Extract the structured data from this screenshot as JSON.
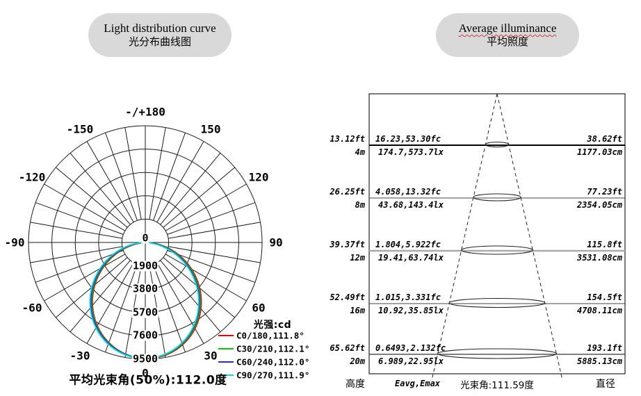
{
  "header": {
    "left_pill": {
      "line1": "Light distribution curve",
      "line2": "光分布曲线图"
    },
    "right_pill": {
      "line1": "Average illuminance",
      "line2": "平均照度"
    }
  },
  "chart_data": [
    {
      "type": "polar",
      "title": "光分布曲线图",
      "units_label": "光强:cd",
      "caption": "平均光束角(50%):112.0度",
      "angle_step_deg": 10,
      "angle_labels": [
        {
          "deg": 0,
          "text": "0"
        },
        {
          "deg": 30,
          "text": "30"
        },
        {
          "deg": 60,
          "text": "60"
        },
        {
          "deg": 90,
          "text": "90"
        },
        {
          "deg": 120,
          "text": "120"
        },
        {
          "deg": 150,
          "text": "150"
        },
        {
          "deg": 180,
          "text": "-/+180"
        },
        {
          "deg": -150,
          "text": "-150"
        },
        {
          "deg": -120,
          "text": "-120"
        },
        {
          "deg": -90,
          "text": "-90"
        },
        {
          "deg": -60,
          "text": "-60"
        },
        {
          "deg": -30,
          "text": "-30"
        }
      ],
      "center_label": "0",
      "ring_values": [
        1900,
        3800,
        5700,
        7600,
        9500
      ],
      "max_cd": 9500,
      "series": [
        {
          "label": "C0/180,111.8°",
          "name": "C0/180",
          "beam_angle_deg": 111.8,
          "color": "#ee0000",
          "peak_cd": 9450
        },
        {
          "label": "C30/210,112.1°",
          "name": "C30/210",
          "beam_angle_deg": 112.1,
          "color": "#00cc00",
          "peak_cd": 9430
        },
        {
          "label": "C60/240,112.0°",
          "name": "C60/240",
          "beam_angle_deg": 112.0,
          "color": "#2a2acc",
          "peak_cd": 9420
        },
        {
          "label": "C90/270,111.9°",
          "name": "C90/270",
          "beam_angle_deg": 111.9,
          "color": "#00dde6",
          "peak_cd": 9440
        }
      ],
      "average_beam_angle_50pct_deg": 112.0
    },
    {
      "type": "cone",
      "title": "平均照度",
      "footer": {
        "height": "高度",
        "e": "Eavg,Emax",
        "beam": "光束角:111.59度",
        "dia": "直径"
      },
      "beam_angle_deg": 111.59,
      "rows": [
        {
          "h_ft": "13.12ft",
          "h_m": "4m",
          "e_fc": "16.23,53.30fc",
          "e_lx": "174.7,573.7lx",
          "d_ft": "38.62ft",
          "d_cm": "1177.03cm",
          "height_m": 4,
          "eavg_lx": 174.7,
          "emax_lx": 573.7,
          "eavg_fc": 16.23,
          "emax_fc": 53.3,
          "dia_cm": 1177.03
        },
        {
          "h_ft": "26.25ft",
          "h_m": "8m",
          "e_fc": "4.058,13.32fc",
          "e_lx": "43.68,143.4lx",
          "d_ft": "77.23ft",
          "d_cm": "2354.05cm",
          "height_m": 8,
          "eavg_lx": 43.68,
          "emax_lx": 143.4,
          "eavg_fc": 4.058,
          "emax_fc": 13.32,
          "dia_cm": 2354.05
        },
        {
          "h_ft": "39.37ft",
          "h_m": "12m",
          "e_fc": "1.804,5.922fc",
          "e_lx": "19.41,63.74lx",
          "d_ft": "115.8ft",
          "d_cm": "3531.08cm",
          "height_m": 12,
          "eavg_lx": 19.41,
          "emax_lx": 63.74,
          "eavg_fc": 1.804,
          "emax_fc": 5.922,
          "dia_cm": 3531.08
        },
        {
          "h_ft": "52.49ft",
          "h_m": "16m",
          "e_fc": "1.015,3.331fc",
          "e_lx": "10.92,35.85lx",
          "d_ft": "154.5ft",
          "d_cm": "4708.11cm",
          "height_m": 16,
          "eavg_lx": 10.92,
          "emax_lx": 35.85,
          "eavg_fc": 1.015,
          "emax_fc": 3.331,
          "dia_cm": 4708.11
        },
        {
          "h_ft": "65.62ft",
          "h_m": "20m",
          "e_fc": "0.6493,2.132fc",
          "e_lx": "6.989,22.95lx",
          "d_ft": "193.1ft",
          "d_cm": "5885.13cm",
          "height_m": 20,
          "eavg_lx": 6.989,
          "emax_lx": 22.95,
          "eavg_fc": 0.6493,
          "emax_fc": 2.132,
          "dia_cm": 5885.13
        }
      ]
    }
  ]
}
